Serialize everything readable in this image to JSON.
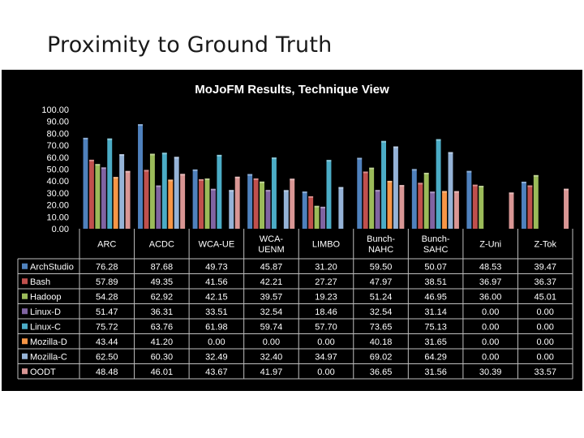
{
  "slide": {
    "title": "Proximity to Ground Truth"
  },
  "chart_data": {
    "type": "bar",
    "title": "MoJoFM Results, Technique View",
    "categories": [
      "ARC",
      "ACDC",
      "WCA-UE",
      "WCA-UENM",
      "LIMBO",
      "Bunch-NAHC",
      "Bunch-SAHC",
      "Z-Uni",
      "Z-Tok"
    ],
    "category_lines": [
      [
        "ARC"
      ],
      [
        "ACDC"
      ],
      [
        "WCA-UE"
      ],
      [
        "WCA-",
        "UENM"
      ],
      [
        "LIMBO"
      ],
      [
        "Bunch-",
        "NAHC"
      ],
      [
        "Bunch-",
        "SAHC"
      ],
      [
        "Z-Uni"
      ],
      [
        "Z-Tok"
      ]
    ],
    "ylim": [
      0,
      100
    ],
    "y_ticks": [
      "0.00",
      "10.00",
      "20.00",
      "30.00",
      "40.00",
      "50.00",
      "60.00",
      "70.00",
      "80.00",
      "90.00",
      "100.00"
    ],
    "grid": false,
    "legend": "data-table-left",
    "series": [
      {
        "name": "ArchStudio",
        "color": "#4f81bd",
        "values": [
          76.28,
          87.68,
          49.73,
          45.87,
          31.2,
          59.5,
          50.07,
          48.53,
          39.47
        ],
        "labels": [
          "76.28",
          "87.68",
          "49.73",
          "45.87",
          "31.20",
          "59.50",
          "50.07",
          "48.53",
          "39.47"
        ]
      },
      {
        "name": "Bash",
        "color": "#c0504d",
        "values": [
          57.89,
          49.35,
          41.56,
          42.21,
          27.27,
          47.97,
          38.51,
          36.97,
          36.37
        ],
        "labels": [
          "57.89",
          "49.35",
          "41.56",
          "42.21",
          "27.27",
          "47.97",
          "38.51",
          "36.97",
          "36.37"
        ]
      },
      {
        "name": "Hadoop",
        "color": "#9bbb59",
        "values": [
          54.28,
          62.92,
          42.15,
          39.57,
          19.23,
          51.24,
          46.95,
          36.0,
          45.01
        ],
        "labels": [
          "54.28",
          "62.92",
          "42.15",
          "39.57",
          "19.23",
          "51.24",
          "46.95",
          "36.00",
          "45.01"
        ]
      },
      {
        "name": "Linux-D",
        "color": "#8064a2",
        "values": [
          51.47,
          36.31,
          33.51,
          32.54,
          18.46,
          32.54,
          31.14,
          0.0,
          0.0
        ],
        "labels": [
          "51.47",
          "36.31",
          "33.51",
          "32.54",
          "18.46",
          "32.54",
          "31.14",
          "0.00",
          "0.00"
        ]
      },
      {
        "name": "Linux-C",
        "color": "#4bacc6",
        "values": [
          75.72,
          63.76,
          61.98,
          59.74,
          57.7,
          73.65,
          75.13,
          0.0,
          0.0
        ],
        "labels": [
          "75.72",
          "63.76",
          "61.98",
          "59.74",
          "57.70",
          "73.65",
          "75.13",
          "0.00",
          "0.00"
        ]
      },
      {
        "name": "Mozilla-D",
        "color": "#f79646",
        "values": [
          43.44,
          41.2,
          0.0,
          0.0,
          0.0,
          40.18,
          31.65,
          0.0,
          0.0
        ],
        "labels": [
          "43.44",
          "41.20",
          "0.00",
          "0.00",
          "0.00",
          "40.18",
          "31.65",
          "0.00",
          "0.00"
        ]
      },
      {
        "name": "Mozilla-C",
        "color": "#95b3d7",
        "values": [
          62.5,
          60.3,
          32.49,
          32.4,
          34.97,
          69.02,
          64.29,
          0.0,
          0.0
        ],
        "labels": [
          "62.50",
          "60.30",
          "32.49",
          "32.40",
          "34.97",
          "69.02",
          "64.29",
          "0.00",
          "0.00"
        ]
      },
      {
        "name": "OODT",
        "color": "#d99694",
        "values": [
          48.48,
          46.01,
          43.67,
          41.97,
          0.0,
          36.65,
          31.56,
          30.39,
          33.57
        ],
        "labels": [
          "48.48",
          "46.01",
          "43.67",
          "41.97",
          "0.00",
          "36.65",
          "31.56",
          "30.39",
          "33.57"
        ]
      }
    ]
  }
}
